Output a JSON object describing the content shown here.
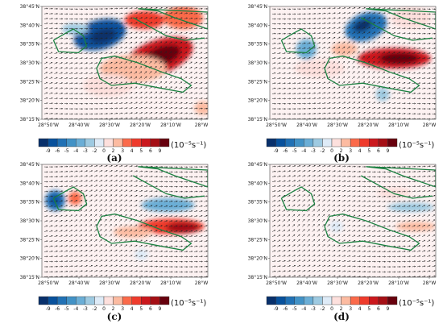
{
  "figure": {
    "lat_ticks": [
      "38°45'N",
      "38°40'N",
      "38°35'N",
      "38°30'N",
      "38°25'N",
      "38°20'N",
      "38°15'N"
    ],
    "lon_ticks": [
      "28°50'W",
      "28°40'W",
      "28°30'W",
      "28°20'W",
      "28°10'W",
      "28°W"
    ],
    "colorbar": {
      "labels": [
        "-9",
        "-6",
        "-5",
        "-4",
        "-3",
        "-2",
        "0",
        "2",
        "3",
        "4",
        "5",
        "6",
        "9"
      ],
      "unit": "(10⁻⁵s⁻¹)",
      "colors": [
        "#08306b",
        "#08519c",
        "#2171b5",
        "#4292c6",
        "#6baed6",
        "#9ecae1",
        "#deebf7",
        "#fde0dd",
        "#fcbba1",
        "#fb6a4a",
        "#ef3b2c",
        "#cb181d",
        "#a50f15",
        "#67000d"
      ]
    }
  },
  "panels": [
    {
      "label": "(a)"
    },
    {
      "label": "(b)"
    },
    {
      "label": "(c)"
    },
    {
      "label": "(d)"
    }
  ]
}
